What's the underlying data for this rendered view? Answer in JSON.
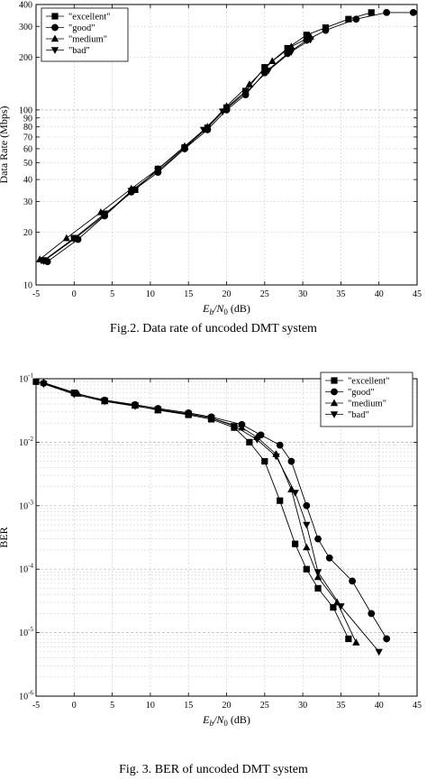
{
  "chart_data": [
    {
      "type": "line",
      "title": "",
      "caption": "Fig.2. Data rate of uncoded DMT system",
      "xlabel": {
        "main": "E",
        "sub1": "b",
        "mid": "/N",
        "sub2": "0",
        "unit": " (dB)"
      },
      "ylabel": "Data Rate (Mbps)",
      "xscale": "linear",
      "yscale": "log",
      "xlim": [
        -5,
        45
      ],
      "ylim": [
        10,
        400
      ],
      "xticks": [
        -5,
        0,
        5,
        10,
        15,
        20,
        25,
        30,
        35,
        40,
        45
      ],
      "yticks": [
        10,
        20,
        30,
        40,
        50,
        60,
        70,
        80,
        90,
        100,
        200,
        300,
        400
      ],
      "grid": true,
      "legend_position": "top-left",
      "series": [
        {
          "name": "\"excellent\"",
          "marker": "square",
          "x": [
            -4,
            0,
            4,
            8,
            11,
            14.5,
            17.5,
            20,
            22.5,
            25,
            28,
            30.5,
            33,
            36,
            39
          ],
          "y": [
            13.8,
            18.5,
            25.5,
            35,
            46,
            61,
            79,
            103,
            128,
            175,
            225,
            268,
            295,
            330,
            360
          ]
        },
        {
          "name": "\"good\"",
          "marker": "circle",
          "x": [
            -3.5,
            0.5,
            4,
            7.5,
            11,
            14.5,
            17.5,
            20,
            22.5,
            25,
            28,
            30.5,
            33,
            37,
            41,
            44.5
          ],
          "y": [
            13.6,
            18.2,
            24.8,
            34,
            44,
            60,
            77,
            100,
            122,
            163,
            210,
            250,
            285,
            330,
            360,
            360
          ]
        },
        {
          "name": "\"medium\"",
          "marker": "triangle-up",
          "x": [
            -4.5,
            -1,
            3.5,
            7.5,
            11,
            14.5,
            17.5,
            20,
            23,
            26,
            28.5,
            31
          ],
          "y": [
            14,
            18.5,
            26,
            35.5,
            46,
            62,
            80,
            105,
            140,
            190,
            230,
            262
          ]
        },
        {
          "name": "\"bad\"",
          "marker": "triangle-down",
          "x": [
            -4,
            0,
            4,
            7.5,
            11,
            14.5,
            17,
            19.5,
            22.5,
            25.5,
            28.5,
            31
          ],
          "y": [
            13.7,
            18.3,
            25,
            34.5,
            45,
            60,
            77,
            98,
            125,
            168,
            215,
            252
          ]
        }
      ]
    },
    {
      "type": "line",
      "title": "",
      "caption": "Fig. 3. BER of uncoded DMT system",
      "xlabel": {
        "main": "E",
        "sub1": "b",
        "mid": "/N",
        "sub2": "0",
        "unit": " (dB)"
      },
      "ylabel": "BER",
      "xscale": "linear",
      "yscale": "log",
      "xlim": [
        -5,
        45
      ],
      "ylim": [
        1e-06,
        0.1
      ],
      "xticks": [
        -5,
        0,
        5,
        10,
        15,
        20,
        25,
        30,
        35,
        40,
        45
      ],
      "ytick_exponents": [
        -1,
        -2,
        -3,
        -4,
        -5,
        -6
      ],
      "ytick_base": "10",
      "grid": true,
      "legend_position": "top-right",
      "series": [
        {
          "name": "\"excellent\"",
          "marker": "square",
          "x": [
            -5,
            0,
            4,
            8,
            11,
            15,
            18,
            21,
            23,
            25,
            27,
            29,
            30.5,
            32,
            34,
            36
          ],
          "y": [
            0.09,
            0.06,
            0.045,
            0.038,
            0.032,
            0.027,
            0.023,
            0.017,
            0.01,
            0.005,
            0.0012,
            0.00025,
            0.0001,
            5e-05,
            2.5e-05,
            8e-06
          ]
        },
        {
          "name": "\"good\"",
          "marker": "circle",
          "x": [
            -4,
            0,
            4,
            8,
            11,
            15,
            18,
            22,
            24.5,
            27,
            28.5,
            30.5,
            32,
            33.5,
            36.5,
            39,
            41
          ],
          "y": [
            0.085,
            0.059,
            0.046,
            0.039,
            0.034,
            0.029,
            0.025,
            0.019,
            0.013,
            0.009,
            0.005,
            0.001,
            0.0003,
            0.00015,
            6.5e-05,
            2e-05,
            8e-06
          ]
        },
        {
          "name": "\"medium\"",
          "marker": "triangle-up",
          "x": [
            -4,
            0.5,
            4,
            8,
            11,
            15,
            18,
            22,
            24,
            26.5,
            28.5,
            30.5,
            32,
            34.5,
            37
          ],
          "y": [
            0.087,
            0.058,
            0.044,
            0.038,
            0.032,
            0.028,
            0.024,
            0.017,
            0.012,
            0.0065,
            0.0018,
            0.00022,
            7.5e-05,
            3e-05,
            7e-06
          ]
        },
        {
          "name": "\"bad\"",
          "marker": "triangle-down",
          "x": [
            -4,
            0,
            4,
            8,
            11,
            15,
            18,
            21,
            24,
            26.5,
            29,
            30.5,
            32,
            35,
            40
          ],
          "y": [
            0.083,
            0.057,
            0.044,
            0.037,
            0.033,
            0.028,
            0.024,
            0.018,
            0.011,
            0.006,
            0.0016,
            0.0005,
            9e-05,
            2.6e-05,
            5e-06
          ]
        }
      ]
    }
  ]
}
